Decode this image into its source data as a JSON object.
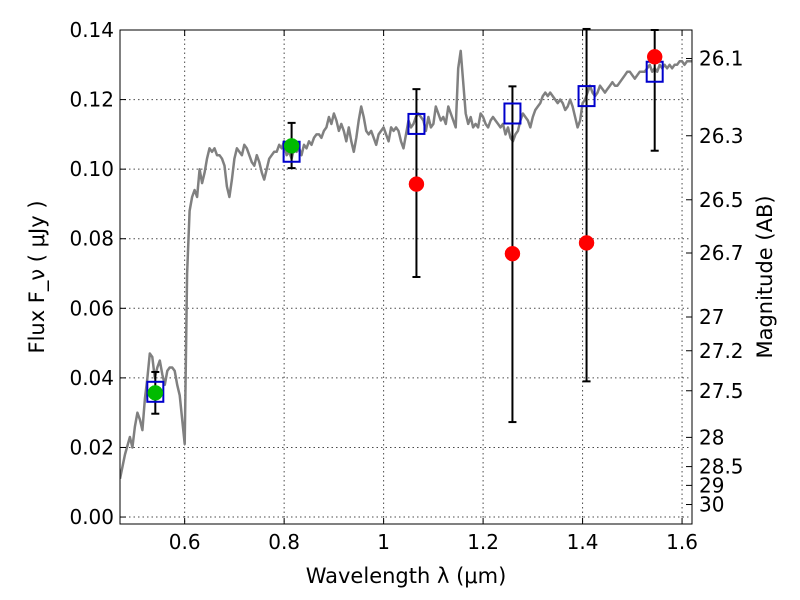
{
  "chart_data": {
    "type": "scatter",
    "title": "",
    "xlabel": "Wavelength  λ (μm)",
    "ylabel": "Flux  F_ν  ( μJy )",
    "y2label": "Magnitude (AB)",
    "xlim": [
      0.47,
      1.62
    ],
    "ylim": [
      -0.002,
      0.14
    ],
    "grid": true,
    "x_ticks": [
      0.6,
      0.8,
      1.0,
      1.2,
      1.4,
      1.6
    ],
    "x_tick_labels": [
      "0.6",
      "0.8",
      "1",
      "1.2",
      "1.4",
      "1.6"
    ],
    "y_ticks": [
      0.0,
      0.02,
      0.04,
      0.06,
      0.08,
      0.1,
      0.12,
      0.14
    ],
    "y_tick_labels": [
      "0.00",
      "0.02",
      "0.04",
      "0.06",
      "0.08",
      "0.10",
      "0.12",
      "0.14"
    ],
    "y2_ticks": [
      {
        "flux": 0.1318,
        "label": "26.1"
      },
      {
        "flux": 0.1096,
        "label": "26.3"
      },
      {
        "flux": 0.0912,
        "label": "26.5"
      },
      {
        "flux": 0.0759,
        "label": "26.7"
      },
      {
        "flux": 0.0575,
        "label": "27"
      },
      {
        "flux": 0.0478,
        "label": "27.2"
      },
      {
        "flux": 0.0363,
        "label": "27.5"
      },
      {
        "flux": 0.0229,
        "label": "28"
      },
      {
        "flux": 0.0145,
        "label": "28.5"
      },
      {
        "flux": 0.0091,
        "label": "29"
      },
      {
        "flux": 0.0036,
        "label": "30"
      }
    ],
    "series": [
      {
        "kind": "line",
        "color": "#808080",
        "points": [
          [
            0.47,
            0.011
          ],
          [
            0.48,
            0.018
          ],
          [
            0.49,
            0.023
          ],
          [
            0.495,
            0.02
          ],
          [
            0.5,
            0.026
          ],
          [
            0.505,
            0.03
          ],
          [
            0.51,
            0.028
          ],
          [
            0.515,
            0.025
          ],
          [
            0.52,
            0.034
          ],
          [
            0.525,
            0.04
          ],
          [
            0.53,
            0.047
          ],
          [
            0.535,
            0.046
          ],
          [
            0.54,
            0.04
          ],
          [
            0.545,
            0.043
          ],
          [
            0.55,
            0.045
          ],
          [
            0.555,
            0.041
          ],
          [
            0.56,
            0.038
          ],
          [
            0.565,
            0.042
          ],
          [
            0.57,
            0.043
          ],
          [
            0.575,
            0.043
          ],
          [
            0.58,
            0.042
          ],
          [
            0.585,
            0.038
          ],
          [
            0.59,
            0.035
          ],
          [
            0.595,
            0.028
          ],
          [
            0.6,
            0.021
          ],
          [
            0.605,
            0.07
          ],
          [
            0.61,
            0.088
          ],
          [
            0.615,
            0.092
          ],
          [
            0.62,
            0.094
          ],
          [
            0.625,
            0.092
          ],
          [
            0.63,
            0.1
          ],
          [
            0.635,
            0.096
          ],
          [
            0.64,
            0.099
          ],
          [
            0.645,
            0.103
          ],
          [
            0.65,
            0.106
          ],
          [
            0.655,
            0.105
          ],
          [
            0.66,
            0.106
          ],
          [
            0.665,
            0.104
          ],
          [
            0.67,
            0.104
          ],
          [
            0.675,
            0.103
          ],
          [
            0.68,
            0.101
          ],
          [
            0.685,
            0.095
          ],
          [
            0.69,
            0.092
          ],
          [
            0.695,
            0.097
          ],
          [
            0.7,
            0.103
          ],
          [
            0.705,
            0.106
          ],
          [
            0.71,
            0.105
          ],
          [
            0.715,
            0.104
          ],
          [
            0.72,
            0.107
          ],
          [
            0.725,
            0.106
          ],
          [
            0.73,
            0.104
          ],
          [
            0.735,
            0.102
          ],
          [
            0.74,
            0.101
          ],
          [
            0.745,
            0.104
          ],
          [
            0.75,
            0.102
          ],
          [
            0.755,
            0.099
          ],
          [
            0.76,
            0.097
          ],
          [
            0.765,
            0.1
          ],
          [
            0.77,
            0.103
          ],
          [
            0.775,
            0.104
          ],
          [
            0.78,
            0.105
          ],
          [
            0.785,
            0.105
          ],
          [
            0.79,
            0.107
          ],
          [
            0.795,
            0.106
          ],
          [
            0.8,
            0.108
          ],
          [
            0.805,
            0.104
          ],
          [
            0.81,
            0.105
          ],
          [
            0.815,
            0.103
          ],
          [
            0.82,
            0.106
          ],
          [
            0.825,
            0.105
          ],
          [
            0.83,
            0.106
          ],
          [
            0.835,
            0.104
          ],
          [
            0.84,
            0.107
          ],
          [
            0.845,
            0.106
          ],
          [
            0.85,
            0.108
          ],
          [
            0.855,
            0.107
          ],
          [
            0.86,
            0.109
          ],
          [
            0.865,
            0.11
          ],
          [
            0.87,
            0.11
          ],
          [
            0.875,
            0.109
          ],
          [
            0.88,
            0.111
          ],
          [
            0.885,
            0.112
          ],
          [
            0.89,
            0.115
          ],
          [
            0.895,
            0.113
          ],
          [
            0.9,
            0.116
          ],
          [
            0.905,
            0.114
          ],
          [
            0.91,
            0.111
          ],
          [
            0.915,
            0.113
          ],
          [
            0.92,
            0.111
          ],
          [
            0.925,
            0.108
          ],
          [
            0.93,
            0.112
          ],
          [
            0.935,
            0.108
          ],
          [
            0.94,
            0.105
          ],
          [
            0.945,
            0.109
          ],
          [
            0.95,
            0.114
          ],
          [
            0.955,
            0.118
          ],
          [
            0.96,
            0.115
          ],
          [
            0.965,
            0.111
          ],
          [
            0.97,
            0.11
          ],
          [
            0.975,
            0.111
          ],
          [
            0.98,
            0.109
          ],
          [
            0.985,
            0.107
          ],
          [
            0.99,
            0.11
          ],
          [
            0.995,
            0.111
          ],
          [
            1.0,
            0.112
          ],
          [
            1.005,
            0.11
          ],
          [
            1.01,
            0.108
          ],
          [
            1.015,
            0.112
          ],
          [
            1.02,
            0.111
          ],
          [
            1.025,
            0.112
          ],
          [
            1.03,
            0.111
          ],
          [
            1.035,
            0.108
          ],
          [
            1.04,
            0.106
          ],
          [
            1.045,
            0.11
          ],
          [
            1.05,
            0.114
          ],
          [
            1.055,
            0.112
          ],
          [
            1.06,
            0.113
          ],
          [
            1.065,
            0.115
          ],
          [
            1.07,
            0.116
          ],
          [
            1.075,
            0.115
          ],
          [
            1.08,
            0.114
          ],
          [
            1.085,
            0.111
          ],
          [
            1.09,
            0.115
          ],
          [
            1.095,
            0.112
          ],
          [
            1.1,
            0.113
          ],
          [
            1.105,
            0.118
          ],
          [
            1.11,
            0.116
          ],
          [
            1.115,
            0.114
          ],
          [
            1.12,
            0.115
          ],
          [
            1.125,
            0.113
          ],
          [
            1.13,
            0.118
          ],
          [
            1.135,
            0.116
          ],
          [
            1.14,
            0.114
          ],
          [
            1.145,
            0.112
          ],
          [
            1.15,
            0.129
          ],
          [
            1.155,
            0.134
          ],
          [
            1.16,
            0.125
          ],
          [
            1.165,
            0.116
          ],
          [
            1.17,
            0.113
          ],
          [
            1.175,
            0.115
          ],
          [
            1.18,
            0.112
          ],
          [
            1.185,
            0.113
          ],
          [
            1.19,
            0.112
          ],
          [
            1.195,
            0.116
          ],
          [
            1.2,
            0.115
          ],
          [
            1.205,
            0.113
          ],
          [
            1.21,
            0.112
          ],
          [
            1.215,
            0.114
          ],
          [
            1.22,
            0.115
          ],
          [
            1.225,
            0.114
          ],
          [
            1.23,
            0.113
          ],
          [
            1.235,
            0.112
          ],
          [
            1.24,
            0.113
          ],
          [
            1.245,
            0.11
          ],
          [
            1.25,
            0.112
          ],
          [
            1.255,
            0.109
          ],
          [
            1.26,
            0.108
          ],
          [
            1.265,
            0.11
          ],
          [
            1.27,
            0.111
          ],
          [
            1.275,
            0.114
          ],
          [
            1.28,
            0.116
          ],
          [
            1.285,
            0.115
          ],
          [
            1.29,
            0.114
          ],
          [
            1.295,
            0.112
          ],
          [
            1.3,
            0.115
          ],
          [
            1.305,
            0.117
          ],
          [
            1.31,
            0.118
          ],
          [
            1.315,
            0.119
          ],
          [
            1.32,
            0.121
          ],
          [
            1.325,
            0.122
          ],
          [
            1.33,
            0.121
          ],
          [
            1.335,
            0.122
          ],
          [
            1.34,
            0.121
          ],
          [
            1.345,
            0.12
          ],
          [
            1.35,
            0.119
          ],
          [
            1.355,
            0.12
          ],
          [
            1.36,
            0.119
          ],
          [
            1.365,
            0.117
          ],
          [
            1.37,
            0.118
          ],
          [
            1.375,
            0.12
          ],
          [
            1.38,
            0.118
          ],
          [
            1.385,
            0.115
          ],
          [
            1.39,
            0.112
          ],
          [
            1.395,
            0.114
          ],
          [
            1.4,
            0.119
          ],
          [
            1.405,
            0.12
          ],
          [
            1.41,
            0.122
          ],
          [
            1.415,
            0.124
          ],
          [
            1.42,
            0.122
          ],
          [
            1.425,
            0.121
          ],
          [
            1.43,
            0.122
          ],
          [
            1.435,
            0.124
          ],
          [
            1.44,
            0.123
          ],
          [
            1.445,
            0.122
          ],
          [
            1.45,
            0.123
          ],
          [
            1.455,
            0.124
          ],
          [
            1.46,
            0.125
          ],
          [
            1.465,
            0.124
          ],
          [
            1.47,
            0.124
          ],
          [
            1.475,
            0.125
          ],
          [
            1.48,
            0.126
          ],
          [
            1.485,
            0.127
          ],
          [
            1.49,
            0.128
          ],
          [
            1.495,
            0.128
          ],
          [
            1.5,
            0.127
          ],
          [
            1.505,
            0.126
          ],
          [
            1.51,
            0.127
          ],
          [
            1.515,
            0.128
          ],
          [
            1.52,
            0.128
          ],
          [
            1.525,
            0.128
          ],
          [
            1.53,
            0.129
          ],
          [
            1.535,
            0.13
          ],
          [
            1.54,
            0.128
          ],
          [
            1.545,
            0.129
          ],
          [
            1.55,
            0.128
          ],
          [
            1.555,
            0.13
          ],
          [
            1.56,
            0.129
          ],
          [
            1.565,
            0.13
          ],
          [
            1.57,
            0.129
          ],
          [
            1.575,
            0.13
          ],
          [
            1.58,
            0.129
          ],
          [
            1.585,
            0.13
          ],
          [
            1.59,
            0.13
          ],
          [
            1.595,
            0.131
          ],
          [
            1.6,
            0.131
          ],
          [
            1.605,
            0.13
          ],
          [
            1.61,
            0.131
          ],
          [
            1.62,
            0.131
          ]
        ]
      },
      {
        "kind": "open-square-markers",
        "color": "#0000cc",
        "x": [
          0.541,
          0.815,
          1.066,
          1.259,
          1.408,
          1.545
        ],
        "y": [
          0.036,
          0.105,
          0.113,
          0.116,
          0.121,
          0.128
        ]
      },
      {
        "kind": "filled-circle-markers-with-errorbars",
        "color": "#00bb00",
        "x": [
          0.541,
          0.815
        ],
        "y": [
          0.0357,
          0.1067
        ],
        "yerr_low": [
          0.0297,
          0.1003
        ],
        "yerr_high": [
          0.0417,
          0.1133
        ]
      },
      {
        "kind": "filled-circle-markers-with-errorbars",
        "color": "#ff0000",
        "x": [
          1.066,
          1.259,
          1.408,
          1.545
        ],
        "y": [
          0.0957,
          0.0757,
          0.0788,
          0.1323
        ],
        "yerr_low": [
          0.069,
          0.0273,
          0.039,
          0.1053
        ],
        "yerr_high": [
          0.123,
          0.1238,
          0.1403,
          0.14
        ]
      }
    ]
  }
}
